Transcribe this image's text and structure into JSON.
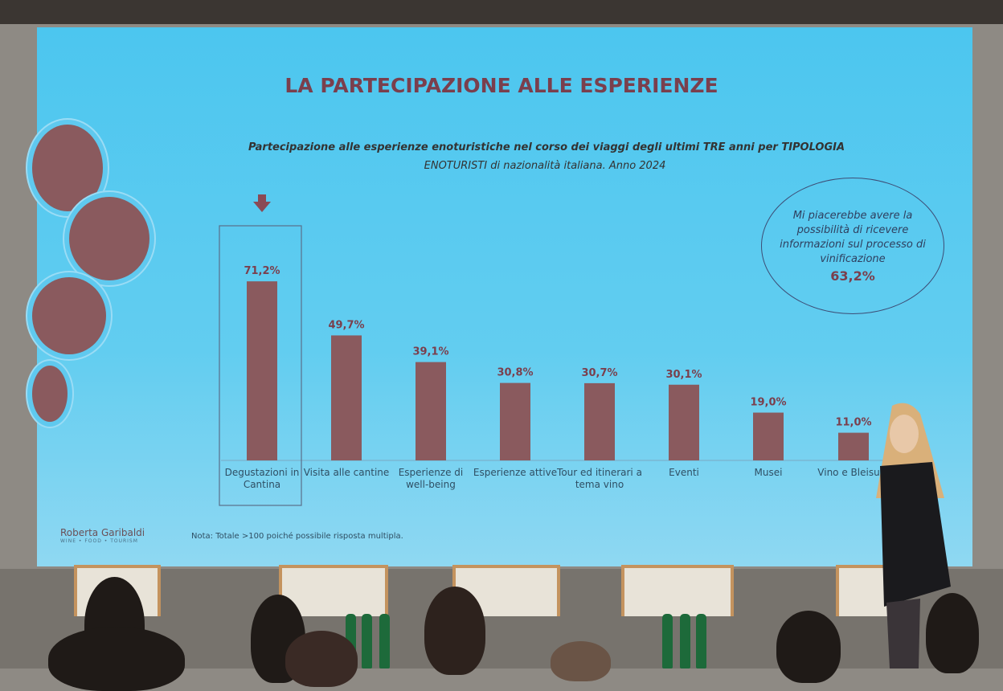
{
  "slide": {
    "title": "LA PARTECIPAZIONE ALLE ESPERIENZE",
    "subtitle": "Partecipazione alle esperienze enoturistiche nel corso dei viaggi degli ultimi TRE anni per TIPOLOGIA",
    "subtitle2": "ENOTURISTI di nazionalità italiana. Anno 2024",
    "callout_text": "Mi piacerebbe avere la possibilità di ricevere informazioni sul processo di vinificazione",
    "callout_value": "63,2%",
    "note": "Nota: Totale >100 poiché possibile risposta multipla.",
    "logo": "Roberta Garibaldi",
    "logo_tagline": "WINE • FOOD • TOURISM"
  },
  "chart_data": {
    "type": "bar",
    "title": "Partecipazione alle esperienze enoturistiche nel corso dei viaggi degli ultimi TRE anni per TIPOLOGIA",
    "categories": [
      "Degustazioni in Cantina",
      "Visita alle cantine",
      "Esperienze di well-being",
      "Esperienze attive",
      "Tour ed itinerari a tema vino",
      "Eventi",
      "Musei",
      "Vino e Bleisu…"
    ],
    "values": [
      71.2,
      49.7,
      39.1,
      30.8,
      30.7,
      30.1,
      19.0,
      11.0
    ],
    "value_labels": [
      "71,2%",
      "49,7%",
      "39,1%",
      "30,8%",
      "30,7%",
      "30,1%",
      "19,0%",
      "11,0%"
    ],
    "highlighted": "Degustazioni in Cantina",
    "bar_color": "#8a5a5e",
    "grid": false,
    "legend": "none"
  }
}
